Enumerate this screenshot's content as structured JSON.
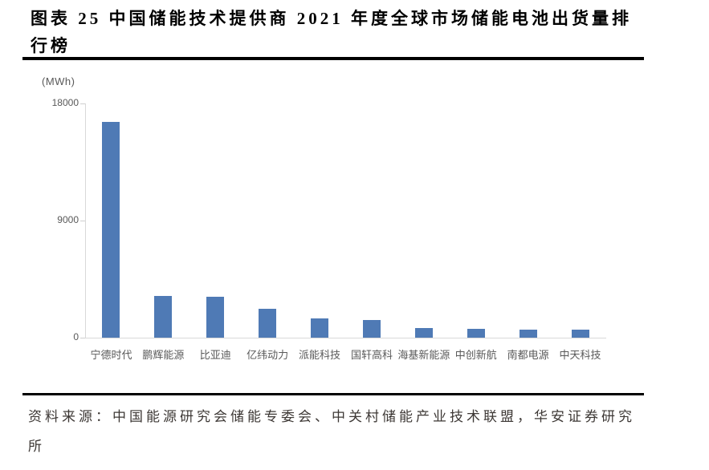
{
  "page": {
    "title": "图表 25 中国储能技术提供商 2021 年度全球市场储能电池出货量排行榜",
    "source": "资料来源：中国能源研究会储能专委会、中关村储能产业技术联盟，华安证券研究所"
  },
  "chart_data": {
    "type": "bar",
    "title": "图表 25 中国储能技术提供商 2021 年度全球市场储能电池出货量排行榜",
    "unit_label": "(MWh)",
    "categories": [
      "宁德时代",
      "鹏辉能源",
      "比亚迪",
      "亿纬动力",
      "派能科技",
      "国轩高科",
      "海基新能源",
      "中创新航",
      "南都电源",
      "中天科技"
    ],
    "values": [
      16600,
      3200,
      3150,
      2250,
      1450,
      1350,
      750,
      680,
      620,
      620
    ],
    "xlabel": "",
    "ylabel": "(MWh)",
    "ylim": [
      0,
      18000
    ],
    "yticks": [
      0,
      9000,
      18000
    ],
    "grid": false,
    "legend": "none",
    "bar_color": "#4f7ab5",
    "axis_color": "#d9d9d9",
    "tick_color": "#cfcfcf",
    "tick_label_color": "#595959"
  }
}
